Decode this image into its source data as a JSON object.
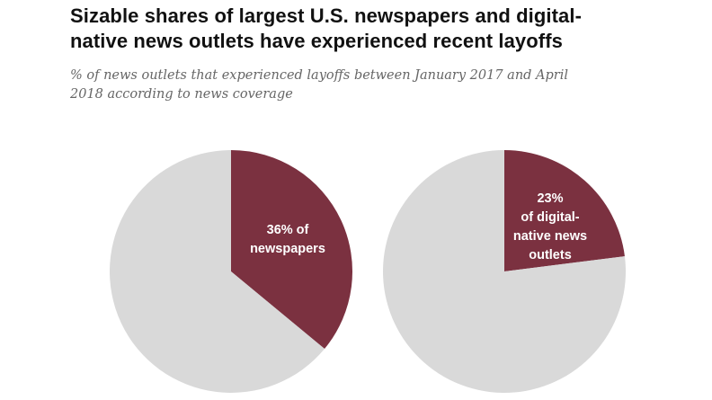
{
  "header": {
    "title_line1": "Sizable shares of largest U.S. newspapers  and digital-",
    "title_line2": "native news outlets have experienced  recent layoffs",
    "subtitle_line1": "% of news outlets that experienced layoffs between January 2017 and April",
    "subtitle_line2": "2018 according to news coverage"
  },
  "colors": {
    "highlight": "#7b3140",
    "remainder": "#d9d9d9"
  },
  "chart_data": [
    {
      "type": "pie",
      "slices": [
        {
          "label": [
            "36% of",
            "newspapers"
          ],
          "value": 36,
          "color": "#7b3140"
        },
        {
          "label": [],
          "value": 64,
          "color": "#d9d9d9"
        }
      ]
    },
    {
      "type": "pie",
      "slices": [
        {
          "label": [
            "23%",
            "of digital-",
            "native news",
            "outlets"
          ],
          "value": 23,
          "color": "#7b3140"
        },
        {
          "label": [],
          "value": 77,
          "color": "#d9d9d9"
        }
      ]
    }
  ]
}
